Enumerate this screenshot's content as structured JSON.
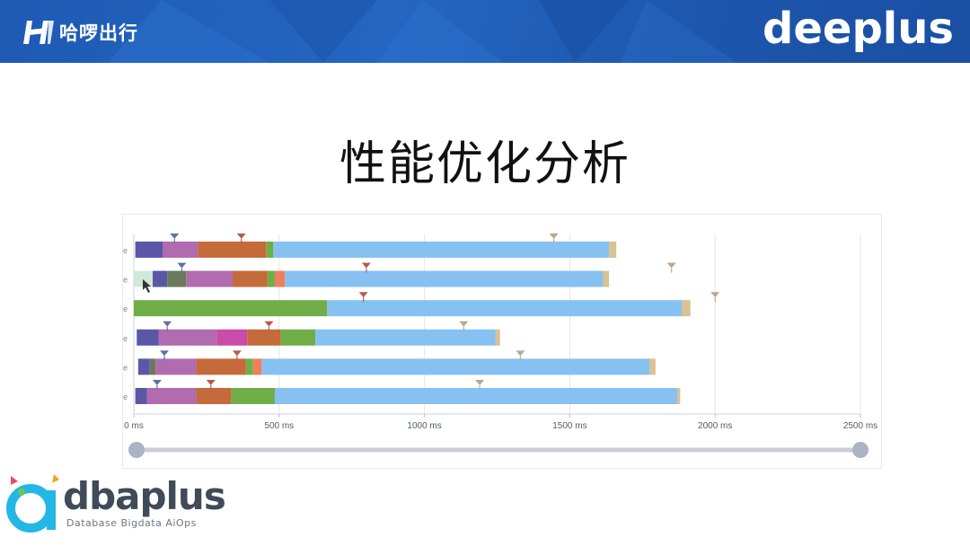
{
  "header": {
    "left_brand": "哈啰出行",
    "right_brand": "deeplus",
    "colors": {
      "banner": "#1f5cb8",
      "text": "#ffffff"
    }
  },
  "slide": {
    "title": "性能优化分析"
  },
  "footer_logo": {
    "wordmark": "dbaplus",
    "tagline": "Database  Bigdata  AiOps"
  },
  "chart_data": {
    "type": "bar",
    "orientation": "horizontal-stacked-timeline",
    "title": "",
    "xlabel": "",
    "ylabel": "",
    "xlim": [
      0,
      2500
    ],
    "grid": true,
    "x_ticks": [
      "0 ms",
      "500 ms",
      "1000 ms",
      "1500 ms",
      "2000 ms",
      "2500 ms"
    ],
    "rows": [
      {
        "segments": [
          {
            "start": 5,
            "end": 100,
            "color": "#5b57a8"
          },
          {
            "start": 100,
            "end": 220,
            "color": "#b06cae"
          },
          {
            "start": 220,
            "end": 455,
            "color": "#c56a3a"
          },
          {
            "start": 455,
            "end": 480,
            "color": "#6fae47"
          },
          {
            "start": 480,
            "end": 1635,
            "color": "#86c1f2"
          },
          {
            "start": 1635,
            "end": 1660,
            "color": "#d9c191"
          }
        ],
        "markers": [
          {
            "at": 140,
            "color": "#5e73a3"
          },
          {
            "at": 370,
            "color": "#b65b4f"
          },
          {
            "at": 1445,
            "color": "#b9a88a"
          }
        ]
      },
      {
        "segments": [
          {
            "start": 0,
            "end": 65,
            "color": "#cfe8d8"
          },
          {
            "start": 65,
            "end": 115,
            "color": "#5b57a8"
          },
          {
            "start": 115,
            "end": 180,
            "color": "#6a7a5a"
          },
          {
            "start": 180,
            "end": 340,
            "color": "#b06cae"
          },
          {
            "start": 340,
            "end": 460,
            "color": "#c56a3a"
          },
          {
            "start": 460,
            "end": 485,
            "color": "#6fae47"
          },
          {
            "start": 485,
            "end": 520,
            "color": "#f07f5e"
          },
          {
            "start": 520,
            "end": 1615,
            "color": "#86c1f2"
          },
          {
            "start": 1615,
            "end": 1635,
            "color": "#d9c191"
          }
        ],
        "markers": [
          {
            "at": 165,
            "color": "#5e73a3"
          },
          {
            "at": 800,
            "color": "#b65b4f"
          },
          {
            "at": 1850,
            "color": "#b9a88a"
          }
        ]
      },
      {
        "segments": [
          {
            "start": 0,
            "end": 665,
            "color": "#6fae47"
          },
          {
            "start": 665,
            "end": 1885,
            "color": "#86c1f2"
          },
          {
            "start": 1885,
            "end": 1915,
            "color": "#d9c191"
          }
        ],
        "markers": [
          {
            "at": 790,
            "color": "#b65b4f"
          },
          {
            "at": 2000,
            "color": "#b9a88a"
          }
        ]
      },
      {
        "segments": [
          {
            "start": 10,
            "end": 85,
            "color": "#5b57a8"
          },
          {
            "start": 85,
            "end": 285,
            "color": "#b06cae"
          },
          {
            "start": 285,
            "end": 390,
            "color": "#c94ca8"
          },
          {
            "start": 390,
            "end": 505,
            "color": "#c56a3a"
          },
          {
            "start": 505,
            "end": 625,
            "color": "#6fae47"
          },
          {
            "start": 625,
            "end": 1245,
            "color": "#86c1f2"
          },
          {
            "start": 1245,
            "end": 1260,
            "color": "#d9c191"
          }
        ],
        "markers": [
          {
            "at": 115,
            "color": "#5e73a3"
          },
          {
            "at": 465,
            "color": "#b65b4f"
          },
          {
            "at": 1135,
            "color": "#b9a88a"
          }
        ]
      },
      {
        "segments": [
          {
            "start": 15,
            "end": 55,
            "color": "#5b57a8"
          },
          {
            "start": 55,
            "end": 75,
            "color": "#6a7a5a"
          },
          {
            "start": 75,
            "end": 215,
            "color": "#b06cae"
          },
          {
            "start": 215,
            "end": 385,
            "color": "#c56a3a"
          },
          {
            "start": 385,
            "end": 410,
            "color": "#6fae47"
          },
          {
            "start": 410,
            "end": 440,
            "color": "#f07f5e"
          },
          {
            "start": 440,
            "end": 1775,
            "color": "#86c1f2"
          },
          {
            "start": 1775,
            "end": 1795,
            "color": "#d9c191"
          }
        ],
        "markers": [
          {
            "at": 105,
            "color": "#5e73a3"
          },
          {
            "at": 355,
            "color": "#b65b4f"
          },
          {
            "at": 1330,
            "color": "#b9a88a"
          }
        ]
      },
      {
        "segments": [
          {
            "start": 5,
            "end": 45,
            "color": "#5b57a8"
          },
          {
            "start": 45,
            "end": 215,
            "color": "#b06cae"
          },
          {
            "start": 215,
            "end": 335,
            "color": "#c56a3a"
          },
          {
            "start": 335,
            "end": 485,
            "color": "#6fae47"
          },
          {
            "start": 485,
            "end": 1870,
            "color": "#86c1f2"
          },
          {
            "start": 1870,
            "end": 1880,
            "color": "#d9c191"
          }
        ],
        "markers": [
          {
            "at": 80,
            "color": "#5e73a3"
          },
          {
            "at": 265,
            "color": "#b65b4f"
          },
          {
            "at": 1190,
            "color": "#b9a88a"
          }
        ]
      }
    ],
    "range_slider": {
      "min": 0,
      "max": 2500,
      "low": 0,
      "high": 2500
    }
  }
}
